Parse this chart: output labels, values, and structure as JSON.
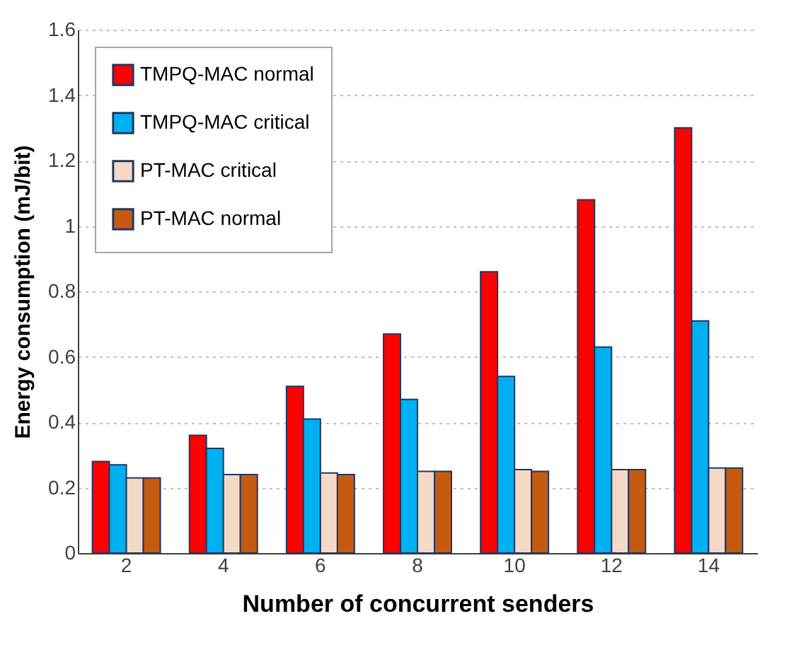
{
  "chart_data": {
    "type": "bar",
    "xlabel": "Number of concurrent senders",
    "ylabel": "Energy consumption (mJ/bit)",
    "categories": [
      "2",
      "4",
      "6",
      "8",
      "10",
      "12",
      "14"
    ],
    "series": [
      {
        "name": "TMPQ-MAC normal",
        "color": "#ff0000",
        "values": [
          0.28,
          0.36,
          0.51,
          0.67,
          0.86,
          1.08,
          1.3
        ]
      },
      {
        "name": "TMPQ-MAC critical",
        "color": "#00b0f0",
        "values": [
          0.27,
          0.32,
          0.41,
          0.47,
          0.54,
          0.63,
          0.71
        ]
      },
      {
        "name": "PT-MAC critical",
        "color": "#f4d9c6",
        "values": [
          0.23,
          0.24,
          0.245,
          0.25,
          0.255,
          0.255,
          0.26
        ]
      },
      {
        "name": "PT-MAC normal",
        "color": "#c55a11",
        "values": [
          0.23,
          0.24,
          0.24,
          0.25,
          0.25,
          0.255,
          0.26
        ]
      }
    ],
    "ylim": [
      0,
      1.6
    ],
    "yticks": [
      0,
      0.2,
      0.4,
      0.6,
      0.8,
      1,
      1.2,
      1.4,
      1.6
    ],
    "grid": "y",
    "legend": "top left"
  }
}
